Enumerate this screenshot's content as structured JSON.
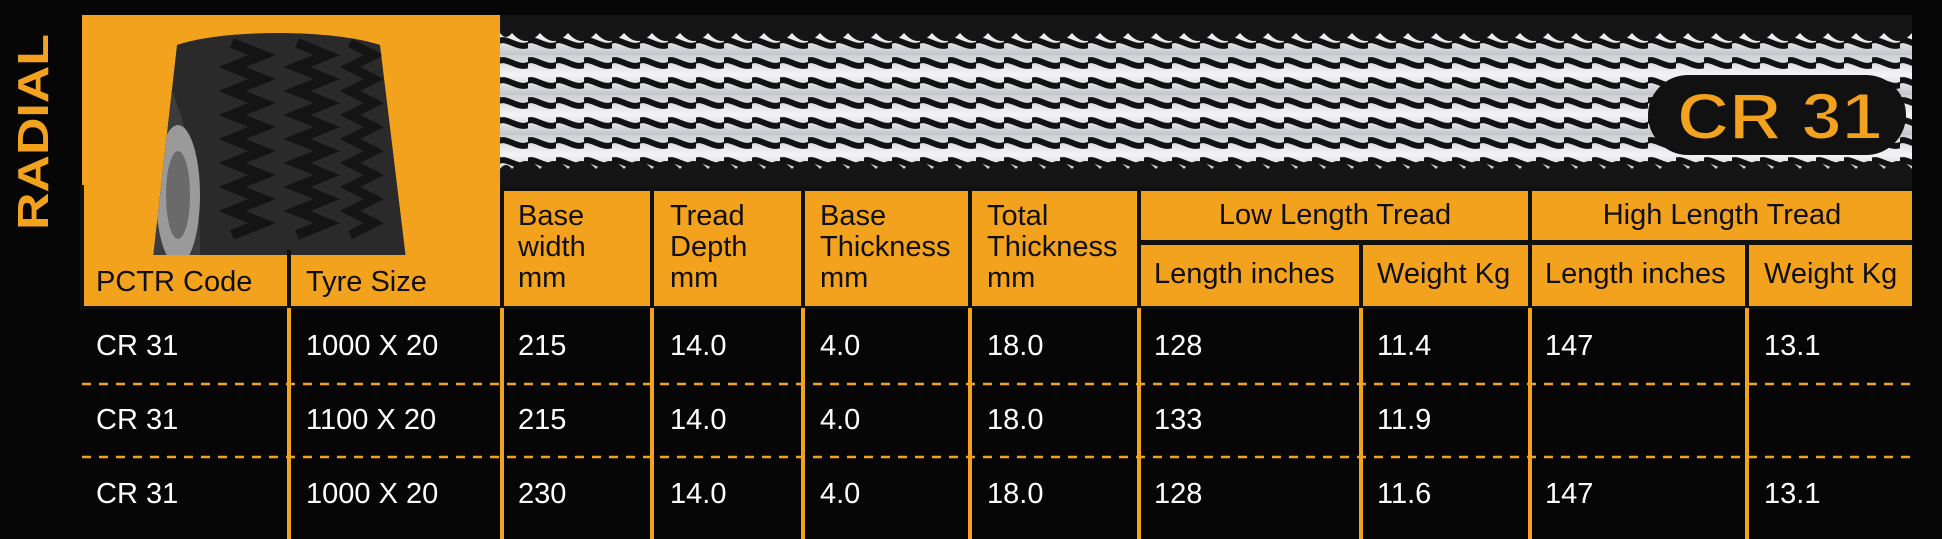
{
  "side_label": "RADIAL",
  "title_badge": "CR 31",
  "colors": {
    "accent": "#f3a21d",
    "background": "#060606",
    "text_light": "#ffffff",
    "text_dark": "#0f0f0f"
  },
  "headers": {
    "pctr_code": "PCTR Code",
    "tyre_size": "Tyre Size",
    "base_width": [
      "Base",
      "width",
      "mm"
    ],
    "tread_depth": [
      "Tread",
      "Depth",
      "mm"
    ],
    "base_thickness": [
      "Base",
      "Thickness",
      "mm"
    ],
    "total_thickness": [
      "Total",
      "Thickness",
      "mm"
    ],
    "low_group": "Low Length Tread",
    "high_group": "High Length Tread",
    "low_length": "Length inches",
    "low_weight": "Weight Kg",
    "high_length": "Length inches",
    "high_weight": "Weight Kg"
  },
  "rows": [
    {
      "code": "CR 31",
      "size": "1000 X 20",
      "base_width": "215",
      "tread_depth": "14.0",
      "base_thickness": "4.0",
      "total_thickness": "18.0",
      "low_length": "128",
      "low_weight": "11.4",
      "high_length": "147",
      "high_weight": "13.1"
    },
    {
      "code": "CR 31",
      "size": "1100 X 20",
      "base_width": "215",
      "tread_depth": "14.0",
      "base_thickness": "4.0",
      "total_thickness": "18.0",
      "low_length": "133",
      "low_weight": "11.9",
      "high_length": "",
      "high_weight": ""
    },
    {
      "code": "CR 31",
      "size": "1000 X 20",
      "base_width": "230",
      "tread_depth": "14.0",
      "base_thickness": "4.0",
      "total_thickness": "18.0",
      "low_length": "128",
      "low_weight": "11.6",
      "high_length": "147",
      "high_weight": "13.1"
    }
  ]
}
